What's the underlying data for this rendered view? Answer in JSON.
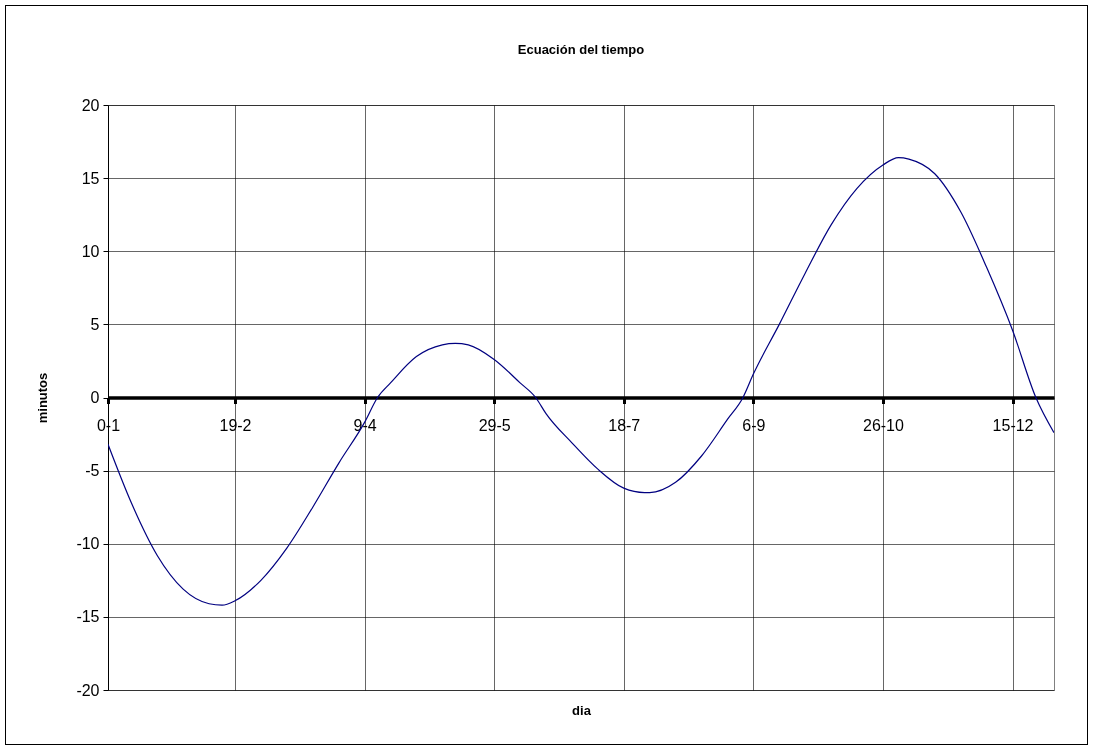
{
  "chart_data": {
    "type": "line",
    "title": "Ecuación del tiempo",
    "xlabel": "dia",
    "ylabel": "minutos",
    "x": [
      "--01-01",
      "--01-10",
      "--01-20",
      "--01-30",
      "--02-09",
      "--02-14",
      "--02-19",
      "--02-29",
      "--03-10",
      "--03-20",
      "--03-30",
      "--04-09",
      "--04-14",
      "--04-19",
      "--04-29",
      "--05-09",
      "--05-14",
      "--05-19",
      "--05-29",
      "--06-08",
      "--06-14",
      "--06-18",
      "--06-28",
      "--07-08",
      "--07-18",
      "--07-26",
      "--07-28",
      "--08-07",
      "--08-17",
      "--08-27",
      "--09-02",
      "--09-06",
      "--09-16",
      "--09-26",
      "--10-06",
      "--10-16",
      "--10-26",
      "--11-01",
      "--11-05",
      "--11-15",
      "--11-25",
      "--12-05",
      "--12-15",
      "--12-24",
      "--12-31"
    ],
    "series": [
      {
        "color": "#000080",
        "values": [
          -3.2,
          -7.2,
          -10.8,
          -13.1,
          -14.1,
          -14.2,
          -13.9,
          -12.5,
          -10.3,
          -7.5,
          -4.5,
          -1.7,
          0.0,
          1.0,
          2.8,
          3.6,
          3.7,
          3.6,
          2.6,
          1.0,
          0.0,
          -1.1,
          -3.1,
          -4.9,
          -6.2,
          -6.5,
          -6.5,
          -5.8,
          -4.0,
          -1.5,
          0.0,
          1.6,
          5.0,
          8.5,
          11.8,
          14.3,
          15.9,
          16.4,
          16.3,
          15.3,
          12.7,
          8.9,
          4.6,
          0.0,
          -2.4
        ]
      }
    ],
    "xlim": [
      "--01-01",
      "--12-31"
    ],
    "xticks": [
      {
        "value": "--01-01",
        "label": "0-1"
      },
      {
        "value": "--02-19",
        "label": "19-2"
      },
      {
        "value": "--04-09",
        "label": "9-4"
      },
      {
        "value": "--05-29",
        "label": "29-5"
      },
      {
        "value": "--07-18",
        "label": "18-7"
      },
      {
        "value": "--09-06",
        "label": "6-9"
      },
      {
        "value": "--10-26",
        "label": "26-10"
      },
      {
        "value": "--12-15",
        "label": "15-12"
      }
    ],
    "ylim": [
      -20,
      20
    ],
    "yticks": [
      -20,
      -15,
      -10,
      -5,
      0,
      5,
      10,
      15,
      20
    ],
    "grid": true,
    "marker": "none",
    "line_style": "solid"
  }
}
